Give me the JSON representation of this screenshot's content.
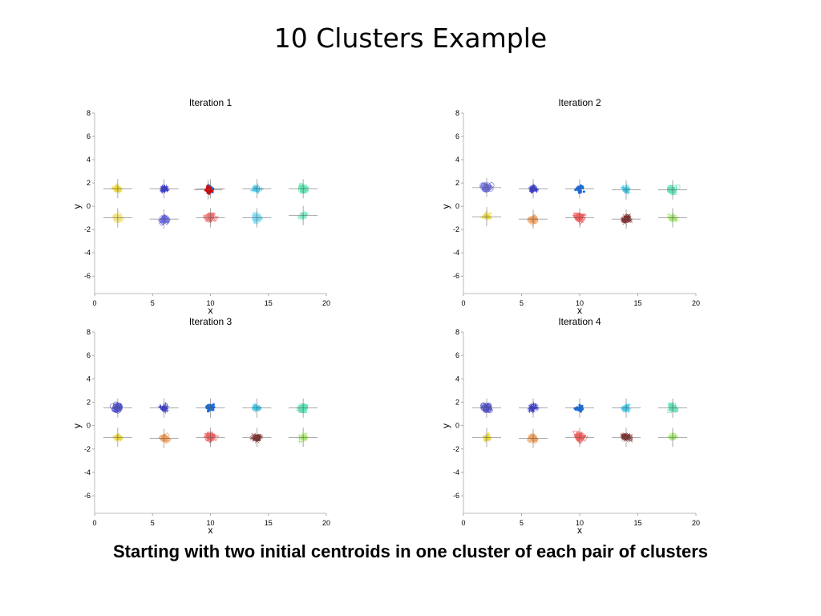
{
  "slide": {
    "title": "10 Clusters Example",
    "caption": "Starting with two initial centroids in one cluster of each pair of clusters"
  },
  "chart_data": [
    {
      "type": "scatter",
      "title": "Iteration 1",
      "xlabel": "x",
      "ylabel": "y",
      "xlim": [
        0,
        20
      ],
      "ylim": [
        -7.5,
        8
      ],
      "xticks": [
        0,
        5,
        10,
        15,
        20
      ],
      "yticks": [
        8,
        6,
        4,
        2,
        0,
        -2,
        -4,
        -6
      ],
      "grid": false,
      "clusters": [
        {
          "cx": 2,
          "cy": 1.5,
          "color": "#e8d640",
          "marker": "plus"
        },
        {
          "cx": 2,
          "cy": -1.0,
          "color": "#f2e27a",
          "marker": "diamond"
        },
        {
          "cx": 6,
          "cy": 1.5,
          "color": "#3a3ad0",
          "marker": "plus"
        },
        {
          "cx": 6,
          "cy": -1.1,
          "color": "#6a6ae0",
          "marker": "diamond"
        },
        {
          "cx": 10,
          "cy": 1.5,
          "color": "#1a6fe0",
          "marker": "dot"
        },
        {
          "cx": 9.8,
          "cy": 1.4,
          "color": "#e00000",
          "marker": "dot"
        },
        {
          "cx": 10,
          "cy": -1.0,
          "color": "#f07070",
          "marker": "triangle"
        },
        {
          "cx": 14,
          "cy": 1.5,
          "color": "#40c8e8",
          "marker": "plus"
        },
        {
          "cx": 14,
          "cy": -1.0,
          "color": "#7ad8f0",
          "marker": "triangle-right"
        },
        {
          "cx": 18,
          "cy": 1.5,
          "color": "#60e0b0",
          "marker": "square"
        },
        {
          "cx": 18,
          "cy": -0.8,
          "color": "#80e8c0",
          "marker": "plus"
        }
      ]
    },
    {
      "type": "scatter",
      "title": "Iteration 2",
      "xlabel": "x",
      "ylabel": "y",
      "xlim": [
        0,
        20
      ],
      "ylim": [
        -7.5,
        8
      ],
      "xticks": [
        0,
        5,
        10,
        15,
        20
      ],
      "yticks": [
        8,
        6,
        4,
        2,
        0,
        -2,
        -4,
        -6
      ],
      "grid": false,
      "clusters": [
        {
          "cx": 2,
          "cy": 1.6,
          "color": "#6a6ad8",
          "marker": "circle"
        },
        {
          "cx": 2,
          "cy": -0.9,
          "color": "#e8d640",
          "marker": "plus"
        },
        {
          "cx": 6,
          "cy": 1.5,
          "color": "#3a3ad0",
          "marker": "plus"
        },
        {
          "cx": 6,
          "cy": -1.1,
          "color": "#f0a060",
          "marker": "diamond"
        },
        {
          "cx": 10,
          "cy": 1.5,
          "color": "#1a6fe0",
          "marker": "dot"
        },
        {
          "cx": 10,
          "cy": -1.0,
          "color": "#f06060",
          "marker": "triangle"
        },
        {
          "cx": 14,
          "cy": 1.4,
          "color": "#40c8e8",
          "marker": "plus"
        },
        {
          "cx": 14,
          "cy": -1.1,
          "color": "#803030",
          "marker": "star"
        },
        {
          "cx": 18,
          "cy": 1.4,
          "color": "#60e0b0",
          "marker": "square"
        },
        {
          "cx": 18,
          "cy": -1.0,
          "color": "#a8e870",
          "marker": "plus"
        }
      ]
    },
    {
      "type": "scatter",
      "title": "Iteration 3",
      "xlabel": "x",
      "ylabel": "y",
      "xlim": [
        0,
        20
      ],
      "ylim": [
        -7.5,
        8
      ],
      "xticks": [
        0,
        5,
        10,
        15,
        20
      ],
      "yticks": [
        8,
        6,
        4,
        2,
        0,
        -2,
        -4,
        -6
      ],
      "grid": false,
      "clusters": [
        {
          "cx": 2,
          "cy": 1.5,
          "color": "#5050c8",
          "marker": "circle"
        },
        {
          "cx": 2,
          "cy": -1.0,
          "color": "#e8d640",
          "marker": "plus"
        },
        {
          "cx": 6,
          "cy": 1.5,
          "color": "#3a3ad0",
          "marker": "plus"
        },
        {
          "cx": 6,
          "cy": -1.1,
          "color": "#f0a060",
          "marker": "diamond"
        },
        {
          "cx": 10,
          "cy": 1.5,
          "color": "#1a6fe0",
          "marker": "dot"
        },
        {
          "cx": 10,
          "cy": -1.0,
          "color": "#f06060",
          "marker": "triangle"
        },
        {
          "cx": 14,
          "cy": 1.5,
          "color": "#40c8e8",
          "marker": "plus"
        },
        {
          "cx": 14,
          "cy": -1.0,
          "color": "#803030",
          "marker": "star"
        },
        {
          "cx": 18,
          "cy": 1.5,
          "color": "#60e0b0",
          "marker": "square"
        },
        {
          "cx": 18,
          "cy": -1.0,
          "color": "#a8e870",
          "marker": "plus"
        }
      ]
    },
    {
      "type": "scatter",
      "title": "Iteration 4",
      "xlabel": "x",
      "ylabel": "y",
      "xlim": [
        0,
        20
      ],
      "ylim": [
        -7.5,
        8
      ],
      "xticks": [
        0,
        5,
        10,
        15,
        20
      ],
      "yticks": [
        8,
        6,
        4,
        2,
        0,
        -2,
        -4,
        -6
      ],
      "grid": false,
      "clusters": [
        {
          "cx": 2,
          "cy": 1.5,
          "color": "#5050c8",
          "marker": "circle"
        },
        {
          "cx": 2,
          "cy": -1.0,
          "color": "#e8d640",
          "marker": "plus"
        },
        {
          "cx": 6,
          "cy": 1.5,
          "color": "#3a3ad0",
          "marker": "plus"
        },
        {
          "cx": 6,
          "cy": -1.1,
          "color": "#f0a060",
          "marker": "diamond"
        },
        {
          "cx": 10,
          "cy": 1.5,
          "color": "#1a6fe0",
          "marker": "dot"
        },
        {
          "cx": 10,
          "cy": -1.0,
          "color": "#f06060",
          "marker": "triangle"
        },
        {
          "cx": 14,
          "cy": 1.5,
          "color": "#40c8e8",
          "marker": "plus"
        },
        {
          "cx": 14,
          "cy": -1.0,
          "color": "#803030",
          "marker": "star"
        },
        {
          "cx": 18,
          "cy": 1.5,
          "color": "#60e0b0",
          "marker": "square"
        },
        {
          "cx": 18,
          "cy": -1.0,
          "color": "#a8e870",
          "marker": "plus"
        }
      ]
    }
  ]
}
